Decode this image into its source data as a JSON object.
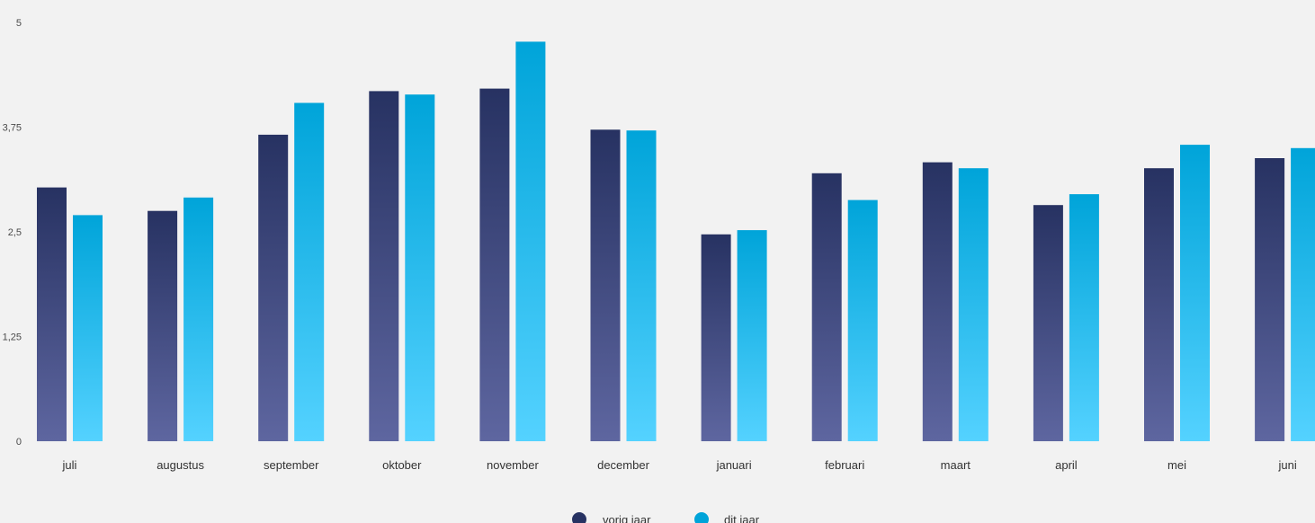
{
  "chart_data": {
    "type": "bar",
    "categories": [
      "juli",
      "augustus",
      "september",
      "oktober",
      "november",
      "december",
      "januari",
      "februari",
      "maart",
      "april",
      "mei",
      "juni"
    ],
    "series": [
      {
        "name": "vorig jaar",
        "values": [
          3.03,
          2.75,
          3.66,
          4.18,
          4.21,
          3.72,
          2.47,
          3.2,
          3.33,
          2.82,
          3.26,
          3.38
        ],
        "color_top": "#273262",
        "color_bottom": "#5e66a0"
      },
      {
        "name": "dit jaar",
        "values": [
          2.7,
          2.91,
          4.04,
          4.14,
          4.77,
          3.71,
          2.52,
          2.88,
          3.26,
          2.95,
          3.54,
          3.5
        ],
        "color_top": "#00a4d9",
        "color_bottom": "#54d2ff"
      }
    ],
    "y_ticks": [
      "0",
      "1,25",
      "2,5",
      "3,75",
      "5"
    ],
    "ylim": [
      0,
      5
    ],
    "grid": false,
    "legend_position": "bottom-center",
    "background": "#f2f2f2"
  }
}
